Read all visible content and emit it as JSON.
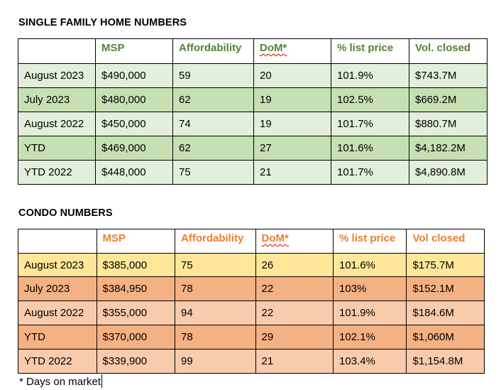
{
  "single_family": {
    "title": "SINGLE FAMILY HOME NUMBERS",
    "header_color": "#548235",
    "row_colors": [
      "#e2efda",
      "#c6e0b4"
    ],
    "headers": [
      "",
      "MSP",
      "Affordability",
      "DoM*",
      "% list price",
      "Vol. closed"
    ],
    "rows": [
      [
        "August 2023",
        "$490,000",
        "59",
        "20",
        "101.9%",
        "$743.7M"
      ],
      [
        "July 2023",
        "$480,000",
        "62",
        "19",
        "102.5%",
        "$669.2M"
      ],
      [
        "August 2022",
        "$450,000",
        "74",
        "19",
        "101.7%",
        "$880.7M"
      ],
      [
        "YTD",
        "$469,000",
        "62",
        "27",
        "101.6%",
        "$4,182.2M"
      ],
      [
        "YTD 2022",
        "$448,000",
        "75",
        "21",
        "101.7%",
        "$4,890.8M"
      ]
    ]
  },
  "condo": {
    "title": "CONDO NUMBERS",
    "header_color": "#ed7d31",
    "row_colors": [
      "#ffe699",
      "#f4b183",
      "#f8cbad"
    ],
    "headers": [
      "",
      "MSP",
      "Affordability",
      "DoM*",
      "% list price",
      "Vol closed"
    ],
    "rows": [
      [
        "August 2023",
        "$385,000",
        "75",
        "26",
        "101.6%",
        "$175.7M"
      ],
      [
        "July 2023",
        "$384,950",
        "78",
        "22",
        "103%",
        "$152.1M"
      ],
      [
        "August 2022",
        "$355,000",
        "94",
        "22",
        "101.9%",
        "$184.6M"
      ],
      [
        "YTD",
        "$370,000",
        "78",
        "29",
        "102.1%",
        "$1,060M"
      ],
      [
        "YTD 2022",
        "$339,900",
        "99",
        "21",
        "103.4%",
        "$1,154.8M"
      ]
    ]
  },
  "footnote": "* Days on market"
}
